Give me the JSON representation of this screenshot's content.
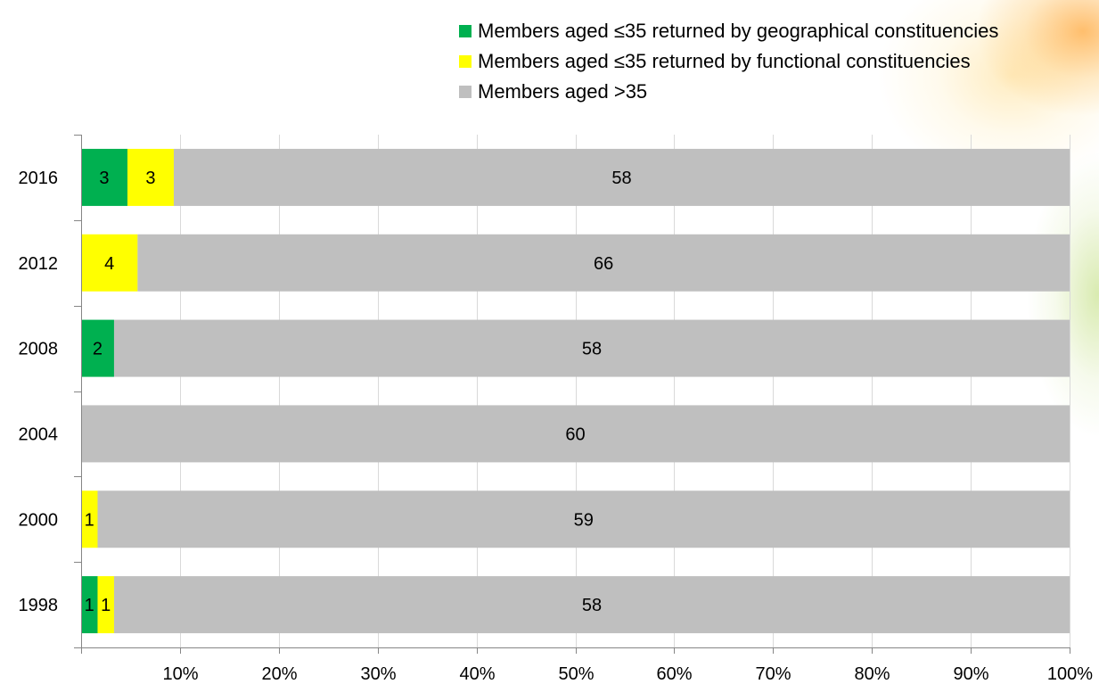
{
  "chart_data": {
    "type": "bar",
    "orientation": "horizontal",
    "stacked": "percent",
    "categories": [
      "2016",
      "2012",
      "2008",
      "2004",
      "2000",
      "1998"
    ],
    "series": [
      {
        "name": "Members aged ≤35 returned by geographical constituencies",
        "color": "#00b050",
        "values": [
          3,
          0,
          2,
          0,
          0,
          1
        ]
      },
      {
        "name": "Members aged ≤35 returned by functional constituencies",
        "color": "#ffff00",
        "values": [
          3,
          4,
          0,
          0,
          1,
          1
        ]
      },
      {
        "name": "Members aged >35",
        "color": "#bfbfbf",
        "values": [
          58,
          66,
          58,
          60,
          59,
          58
        ]
      }
    ],
    "x_ticks": [
      "10%",
      "20%",
      "30%",
      "40%",
      "50%",
      "60%",
      "70%",
      "80%",
      "90%",
      "100%"
    ],
    "xlim": [
      0,
      100
    ],
    "legend_position": "top-right",
    "grid": "vertical"
  }
}
